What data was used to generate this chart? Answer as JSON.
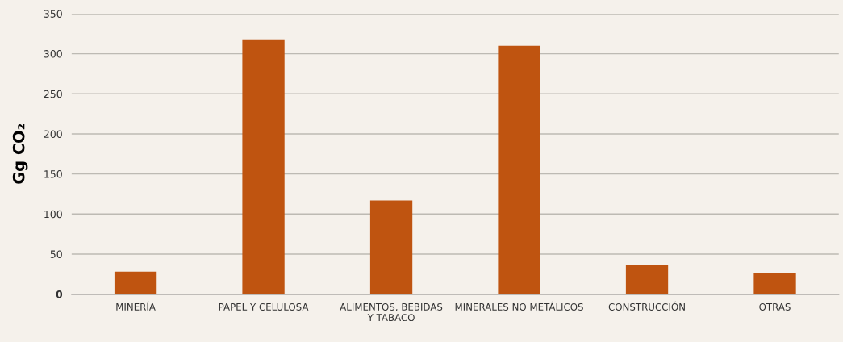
{
  "chart_data": {
    "type": "bar",
    "ylabel": "Gg CO₂",
    "categories": [
      "MINERÍA",
      "PAPEL Y CELULOSA",
      "ALIMENTOS, BEBIDAS\nY TABACO",
      "MINERALES NO METÁLICOS",
      "CONSTRUCCIÓN",
      "OTRAS"
    ],
    "values": [
      28,
      318,
      117,
      310,
      36,
      26
    ],
    "color": "#bf5410",
    "ylim": [
      0,
      350
    ],
    "yticks": [
      0,
      50,
      100,
      150,
      200,
      250,
      300,
      350
    ],
    "grid": "y",
    "legend": false
  }
}
